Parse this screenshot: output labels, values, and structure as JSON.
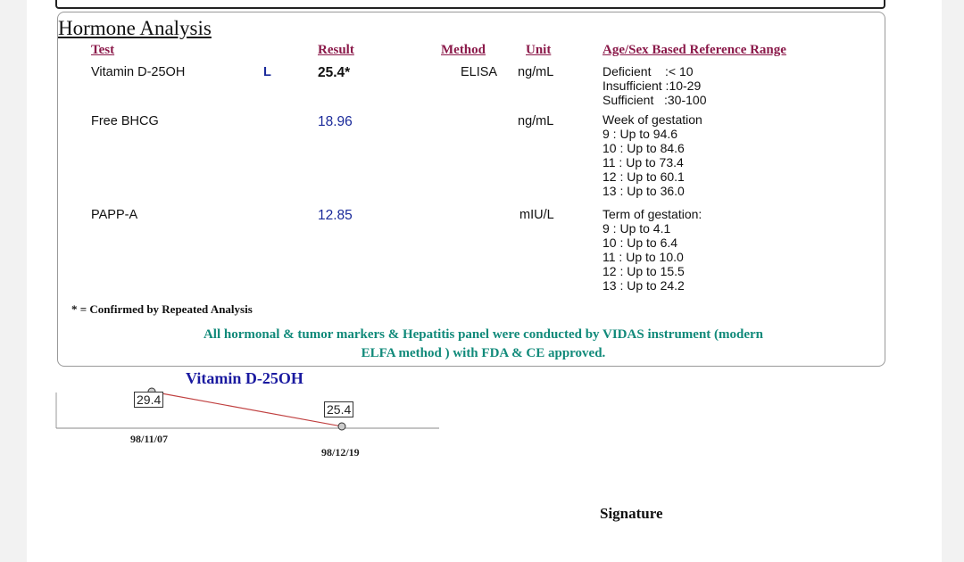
{
  "section_title": "Hormone Analysis",
  "headers": {
    "test": "Test",
    "result": "Result",
    "method": "Method",
    "unit": "Unit",
    "range": "Age/Sex Based Reference Range"
  },
  "rows": [
    {
      "test": "Vitamin D-25OH",
      "flag": "L",
      "result": "25.4*",
      "method": "ELISA",
      "unit": "ng/mL",
      "range": [
        "Deficient    :< 10",
        "Insufficient :10-29",
        "Sufficient   :30-100"
      ]
    },
    {
      "test": "Free BHCG",
      "flag": "",
      "result": "18.96",
      "method": "",
      "unit": "ng/mL",
      "range": [
        "Week of gestation",
        "9 : Up to 94.6",
        "10 : Up to 84.6",
        "11 : Up to 73.4",
        "12 : Up to 60.1",
        "13 : Up to 36.0"
      ]
    },
    {
      "test": "PAPP-A",
      "flag": "",
      "result": "12.85",
      "method": "",
      "unit": "mIU/L",
      "range": [
        "Term of gestation:",
        "9 : Up to 4.1",
        "10 : Up to 6.4",
        "11 : Up to 10.0",
        "12 : Up to 15.5",
        "13 : Up to 24.2"
      ]
    }
  ],
  "footnote": "* = Confirmed by Repeated Analysis",
  "note_line1": "All hormonal & tumor markers & Hepatitis panel were conducted by VIDAS instrument (modern",
  "note_line2": "ELFA method ) with FDA & CE approved.",
  "signature": "Signature",
  "chart_data": {
    "type": "line",
    "title": "Vitamin D-25OH",
    "x": [
      "98/11/07",
      "98/12/19"
    ],
    "series": [
      {
        "values": [
          29.4,
          25.4
        ],
        "color": "#c04040"
      }
    ],
    "data_labels": [
      "29.4",
      "25.4"
    ]
  }
}
